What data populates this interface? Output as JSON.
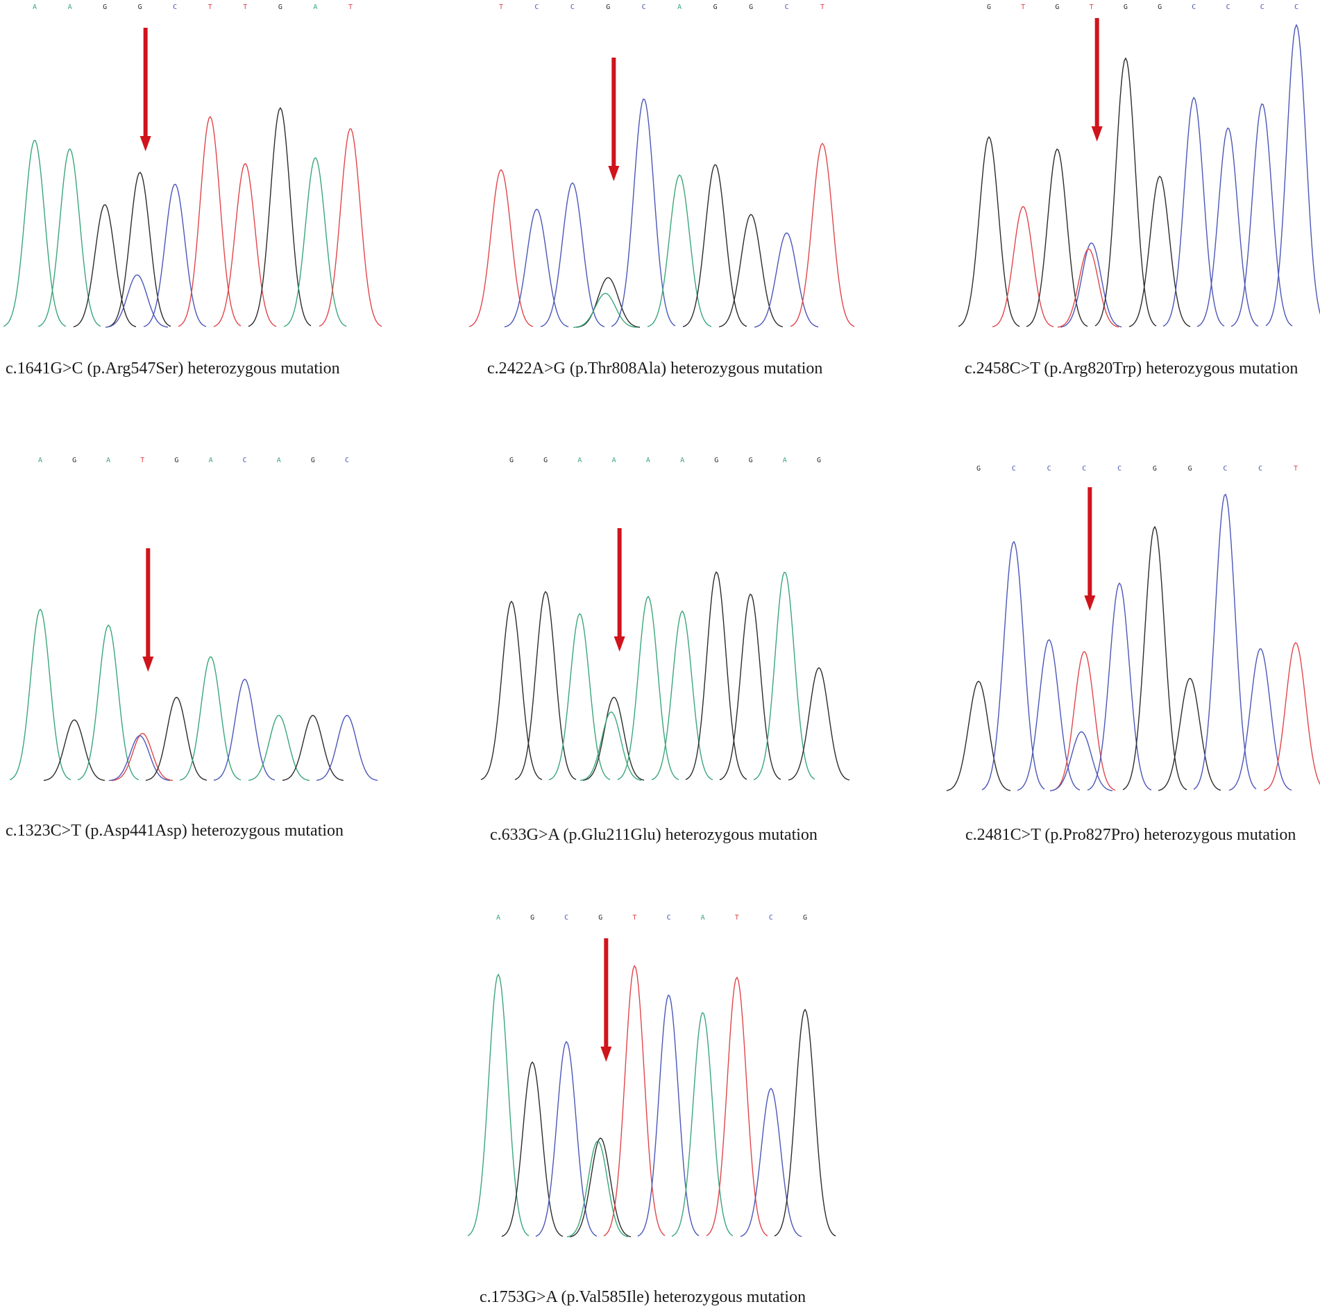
{
  "colors": {
    "A": "#3aa67a",
    "C": "#4a56b8",
    "G": "#2b2b2b",
    "T": "#e0454a",
    "arrow": "#d0141c"
  },
  "chart_data": [
    {
      "type": "line",
      "caption": "c.1641G>C (p.Arg547Ser) heterozygous mutation",
      "bases": [
        "A",
        "A",
        "G",
        "G",
        "C",
        "T",
        "T",
        "G",
        "A",
        "T"
      ],
      "peaks": [
        {
          "base": "A",
          "h": 0.64
        },
        {
          "base": "A",
          "h": 0.61
        },
        {
          "base": "G",
          "h": 0.42
        },
        {
          "base": "G",
          "h": 0.53,
          "sec": {
            "base": "C",
            "h": 0.18
          }
        },
        {
          "base": "C",
          "h": 0.49
        },
        {
          "base": "T",
          "h": 0.72
        },
        {
          "base": "T",
          "h": 0.56
        },
        {
          "base": "G",
          "h": 0.75
        },
        {
          "base": "A",
          "h": 0.58
        },
        {
          "base": "T",
          "h": 0.68
        }
      ],
      "arrow_at": 3
    },
    {
      "type": "line",
      "caption": "c.2422A>G (p.Thr808Ala)  heterozygous mutation",
      "bases": [
        "T",
        "C",
        "C",
        "G",
        "C",
        "A",
        "G",
        "G",
        "C",
        "T"
      ],
      "peaks": [
        {
          "base": "T",
          "h": 0.6
        },
        {
          "base": "C",
          "h": 0.45
        },
        {
          "base": "C",
          "h": 0.55
        },
        {
          "base": "G",
          "h": 0.19,
          "sec": {
            "base": "A",
            "h": 0.13
          }
        },
        {
          "base": "C",
          "h": 0.87
        },
        {
          "base": "A",
          "h": 0.58
        },
        {
          "base": "G",
          "h": 0.62
        },
        {
          "base": "G",
          "h": 0.43
        },
        {
          "base": "C",
          "h": 0.36
        },
        {
          "base": "T",
          "h": 0.7
        }
      ],
      "arrow_at": 3
    },
    {
      "type": "line",
      "caption": "c.2458C>T (p.Arg820Trp)  heterozygous mutation",
      "bases": [
        "G",
        "T",
        "G",
        "T",
        "G",
        "G",
        "C",
        "C",
        "C",
        "C"
      ],
      "peaks": [
        {
          "base": "G",
          "h": 0.63
        },
        {
          "base": "T",
          "h": 0.4
        },
        {
          "base": "G",
          "h": 0.59
        },
        {
          "base": "C",
          "h": 0.28,
          "sec": {
            "base": "T",
            "h": 0.26
          }
        },
        {
          "base": "G",
          "h": 0.89
        },
        {
          "base": "G",
          "h": 0.5
        },
        {
          "base": "C",
          "h": 0.76
        },
        {
          "base": "C",
          "h": 0.66
        },
        {
          "base": "C",
          "h": 0.74
        },
        {
          "base": "C",
          "h": 1.0
        }
      ],
      "arrow_at": 3
    },
    {
      "type": "line",
      "caption": "c.1323C>T  (p.Asp441Asp) heterozygous mutation",
      "bases": [
        "A",
        "G",
        "A",
        "T",
        "G",
        "A",
        "C",
        "A",
        "G",
        "C"
      ],
      "peaks": [
        {
          "base": "A",
          "h": 0.76
        },
        {
          "base": "G",
          "h": 0.27
        },
        {
          "base": "A",
          "h": 0.69
        },
        {
          "base": "T",
          "h": 0.21,
          "sec": {
            "base": "C",
            "h": 0.2
          }
        },
        {
          "base": "G",
          "h": 0.37
        },
        {
          "base": "A",
          "h": 0.55
        },
        {
          "base": "C",
          "h": 0.45
        },
        {
          "base": "A",
          "h": 0.29
        },
        {
          "base": "G",
          "h": 0.29
        },
        {
          "base": "C",
          "h": 0.29
        }
      ],
      "arrow_at": 3
    },
    {
      "type": "line",
      "caption": "c.633G>A (p.Glu211Glu) heterozygous mutation",
      "bases": [
        "G",
        "G",
        "A",
        "A",
        "A",
        "A",
        "G",
        "G",
        "A",
        "G"
      ],
      "peaks": [
        {
          "base": "G",
          "h": 0.73
        },
        {
          "base": "G",
          "h": 0.77
        },
        {
          "base": "A",
          "h": 0.68
        },
        {
          "base": "G",
          "h": 0.34,
          "sec": {
            "base": "A",
            "h": 0.28
          }
        },
        {
          "base": "A",
          "h": 0.75
        },
        {
          "base": "A",
          "h": 0.69
        },
        {
          "base": "G",
          "h": 0.85
        },
        {
          "base": "G",
          "h": 0.76
        },
        {
          "base": "A",
          "h": 0.85
        },
        {
          "base": "G",
          "h": 0.46
        }
      ],
      "arrow_at": 3
    },
    {
      "type": "line",
      "caption": "c.2481C>T (p.Pro827Pro) heterozygous mutation",
      "bases": [
        "G",
        "C",
        "C",
        "C",
        "C",
        "G",
        "G",
        "C",
        "C",
        "T"
      ],
      "peaks": [
        {
          "base": "G",
          "h": 0.37
        },
        {
          "base": "C",
          "h": 0.84
        },
        {
          "base": "C",
          "h": 0.51
        },
        {
          "base": "T",
          "h": 0.47,
          "sec": {
            "base": "C",
            "h": 0.2
          }
        },
        {
          "base": "C",
          "h": 0.7
        },
        {
          "base": "G",
          "h": 0.89
        },
        {
          "base": "G",
          "h": 0.38
        },
        {
          "base": "C",
          "h": 1.0
        },
        {
          "base": "C",
          "h": 0.48
        },
        {
          "base": "T",
          "h": 0.5
        }
      ],
      "arrow_at": 3
    },
    {
      "type": "line",
      "caption": "c.1753G>A (p.Val585Ile)  heterozygous mutation",
      "bases": [
        "A",
        "G",
        "C",
        "G",
        "T",
        "C",
        "A",
        "T",
        "C",
        "G"
      ],
      "peaks": [
        {
          "base": "A",
          "h": 0.9
        },
        {
          "base": "G",
          "h": 0.6
        },
        {
          "base": "C",
          "h": 0.67
        },
        {
          "base": "G",
          "h": 0.34,
          "sec": {
            "base": "A",
            "h": 0.33
          }
        },
        {
          "base": "T",
          "h": 0.93
        },
        {
          "base": "C",
          "h": 0.83
        },
        {
          "base": "A",
          "h": 0.77
        },
        {
          "base": "T",
          "h": 0.89
        },
        {
          "base": "C",
          "h": 0.51
        },
        {
          "base": "G",
          "h": 0.78
        }
      ],
      "arrow_at": 3
    }
  ]
}
